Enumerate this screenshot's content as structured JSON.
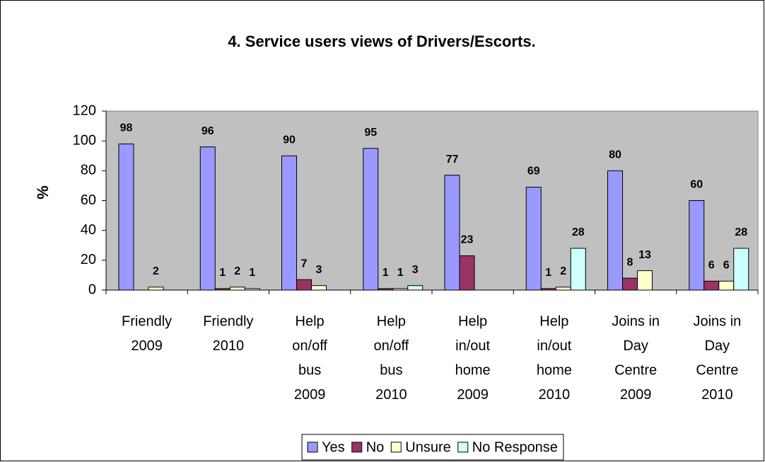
{
  "chart_data": {
    "type": "bar",
    "title": "4. Service users views of Drivers/Escorts.",
    "y_label": "%",
    "categories": [
      [
        "Friendly",
        "2009"
      ],
      [
        "Friendly",
        "2010"
      ],
      [
        "Help",
        "on/off",
        "bus",
        "2009"
      ],
      [
        "Help",
        "on/off",
        "bus",
        "2010"
      ],
      [
        "Help",
        "in/out",
        "home",
        "2009"
      ],
      [
        "Help",
        "in/out",
        "home",
        "2010"
      ],
      [
        "Joins in",
        "Day",
        "Centre",
        "2009"
      ],
      [
        "Joins in",
        "Day",
        "Centre",
        "2010"
      ]
    ],
    "series": [
      {
        "name": "Yes",
        "color": "#9999ff",
        "values": [
          98,
          96,
          90,
          95,
          77,
          69,
          80,
          60
        ]
      },
      {
        "name": "No",
        "color": "#993366",
        "values": [
          null,
          1,
          7,
          1,
          23,
          1,
          8,
          6
        ]
      },
      {
        "name": "Unsure",
        "color": "#ffffcc",
        "values": [
          2,
          2,
          3,
          1,
          null,
          2,
          13,
          6
        ]
      },
      {
        "name": "No Response",
        "color": "#ccffff",
        "values": [
          null,
          1,
          null,
          3,
          null,
          28,
          null,
          28
        ]
      }
    ],
    "ylim": [
      0,
      120
    ],
    "yticks": [
      0,
      20,
      40,
      60,
      80,
      100,
      120
    ],
    "grid": false,
    "legend": "bottom",
    "plot_background": "#c0c0c0"
  }
}
